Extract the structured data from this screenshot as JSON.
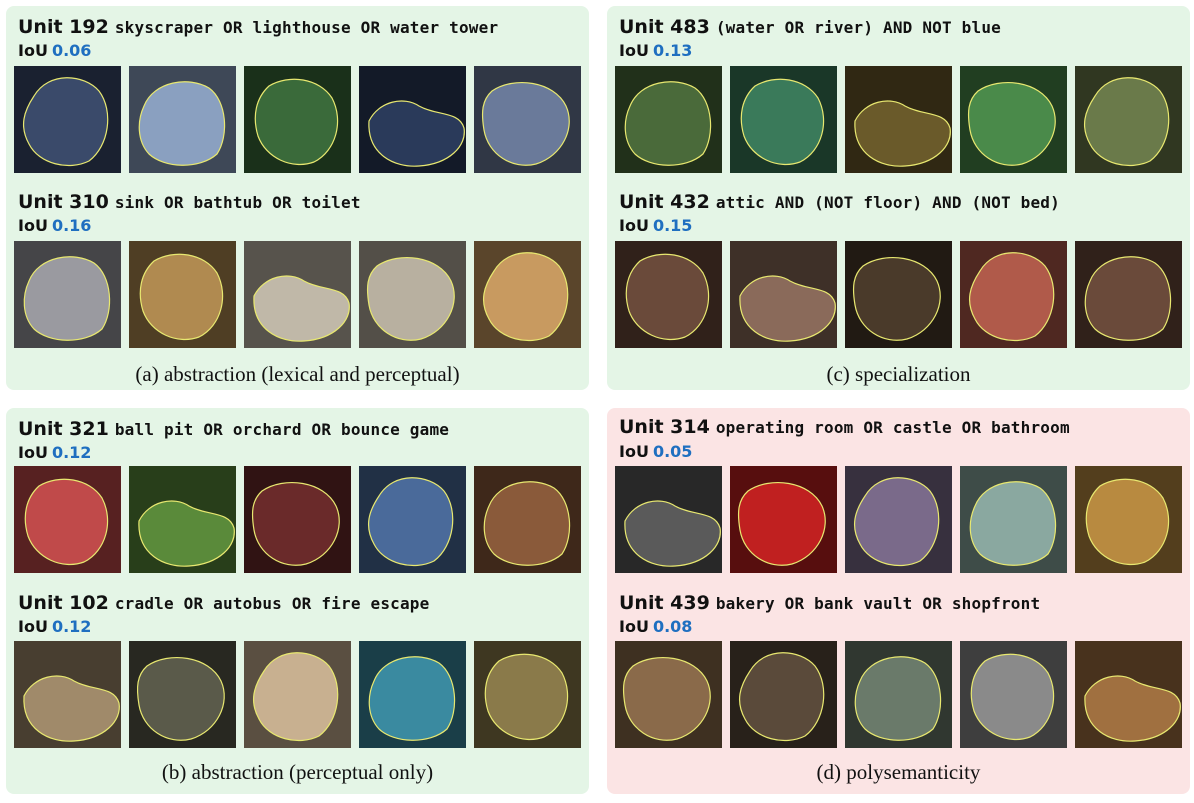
{
  "panels": [
    {
      "caption": "(a) abstraction (lexical and perceptual)",
      "color": "green",
      "units": [
        {
          "name": "Unit 192",
          "formula": "skyscraper OR lighthouse OR water tower",
          "iou_label": "IoU",
          "iou": "0.06"
        },
        {
          "name": "Unit 310",
          "formula": "sink OR bathtub OR toilet",
          "iou_label": "IoU",
          "iou": "0.16"
        }
      ]
    },
    {
      "caption": "(c) specialization",
      "color": "green",
      "units": [
        {
          "name": "Unit 483",
          "formula": "(water OR river) AND NOT blue",
          "iou_label": "IoU",
          "iou": "0.13"
        },
        {
          "name": "Unit 432",
          "formula": "attic AND (NOT floor) AND (NOT bed)",
          "iou_label": "IoU",
          "iou": "0.15"
        }
      ]
    },
    {
      "caption": "(b) abstraction (perceptual only)",
      "color": "green",
      "units": [
        {
          "name": "Unit 321",
          "formula": "ball pit OR orchard OR bounce game",
          "iou_label": "IoU",
          "iou": "0.12"
        },
        {
          "name": "Unit 102",
          "formula": "cradle OR autobus OR fire escape",
          "iou_label": "IoU",
          "iou": "0.12"
        }
      ]
    },
    {
      "caption": "(d) polysemanticity",
      "color": "pink",
      "units": [
        {
          "name": "Unit 314",
          "formula": "operating room OR castle OR bathroom",
          "iou_label": "IoU",
          "iou": "0.05"
        },
        {
          "name": "Unit 439",
          "formula": "bakery OR bank vault OR shopfront",
          "iou_label": "IoU",
          "iou": "0.08"
        }
      ]
    }
  ],
  "thumbnail_colors": [
    [
      [
        "#3a4a6a",
        "#8aa0c0",
        "#3a6a3a",
        "#2a3a5a",
        "#6a7a9a"
      ],
      [
        "#9a9aa0",
        "#b08a50",
        "#c0b8a8",
        "#b8b0a0",
        "#c89a60"
      ]
    ],
    [
      [
        "#4a6a3a",
        "#3a7a5a",
        "#6a5a2a",
        "#4a8a4a",
        "#6a7a4a"
      ],
      [
        "#6a4a3a",
        "#8a6a5a",
        "#4a3a2a",
        "#b05a4a",
        "#6a4a3a"
      ]
    ],
    [
      [
        "#c04a4a",
        "#5a8a3a",
        "#6a2a2a",
        "#4a6a9a",
        "#8a5a3a"
      ],
      [
        "#a08a6a",
        "#5a5a4a",
        "#c8b090",
        "#3a8aa0",
        "#8a7a4a"
      ]
    ],
    [
      [
        "#5a5a5a",
        "#c02020",
        "#7a6a8a",
        "#8aa8a0",
        "#b88a40"
      ],
      [
        "#8a6a4a",
        "#5a4a3a",
        "#6a7a6a",
        "#8a8a8a",
        "#a07040"
      ]
    ]
  ]
}
